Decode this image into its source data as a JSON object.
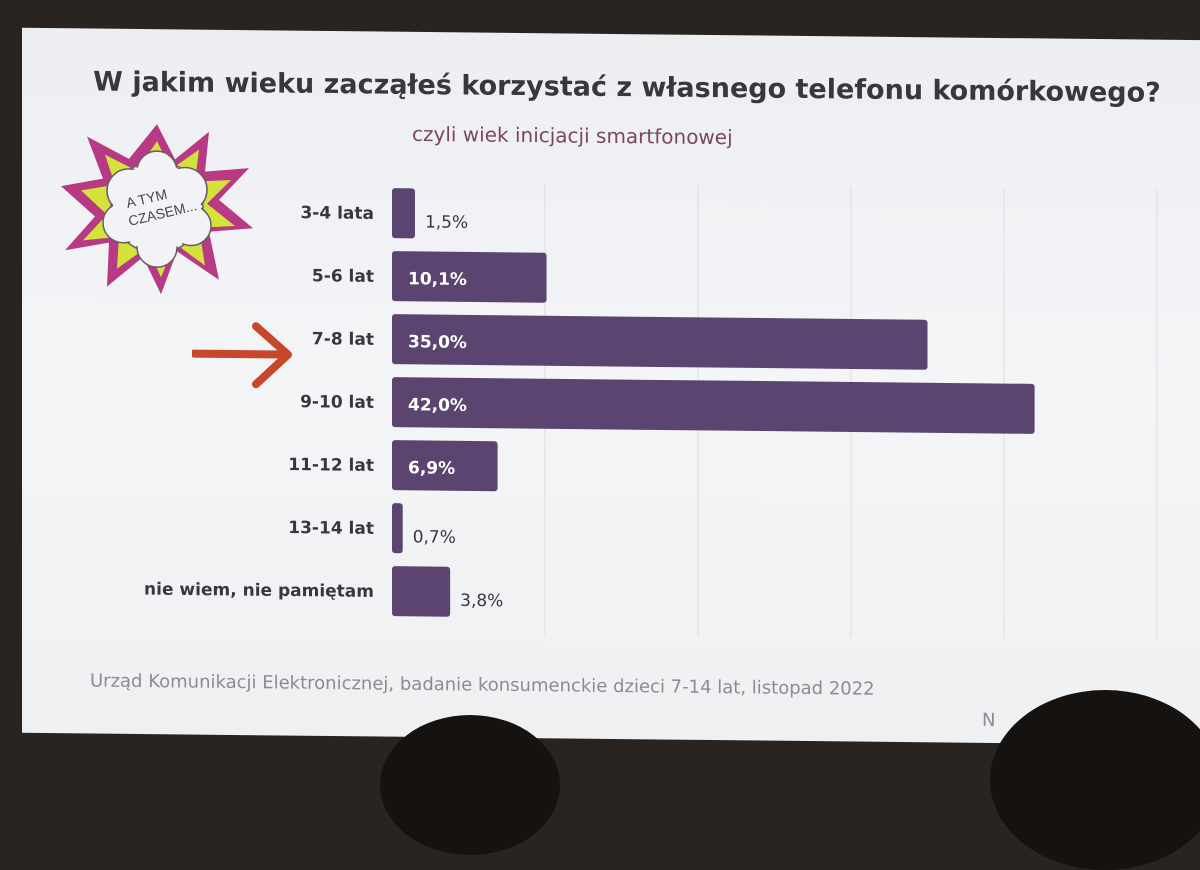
{
  "slide": {
    "title": "W jakim wieku zacząłeś korzystać z własnego telefonu komórkowego?",
    "subtitle": "czyli wiek inicjacji smartfonowej",
    "sticker_text": "A TYM CZASEM...",
    "source": "Urząd Komunikacji Elektronicznej, badanie konsumenckie dzieci 7-14 lat, listopad 2022",
    "source_trailing": "N"
  },
  "colors": {
    "bar": "#5b4470",
    "arrow": "#c8462a",
    "title": "#3a3640",
    "subtitle": "#7a4660"
  },
  "chart_data": {
    "type": "bar",
    "orientation": "horizontal",
    "title": "W jakim wieku zacząłeś korzystać z własnego telefonu komórkowego?",
    "subtitle": "czyli wiek inicjacji smartfonowej",
    "categories": [
      "3-4 lata",
      "5-6 lat",
      "7-8 lat",
      "9-10 lat",
      "11-12 lat",
      "13-14 lat",
      "nie wiem, nie pamiętam"
    ],
    "values": [
      1.5,
      10.1,
      35.0,
      42.0,
      6.9,
      0.7,
      3.8
    ],
    "data_labels": [
      "1,5%",
      "10,1%",
      "35,0%",
      "42,0%",
      "6,9%",
      "0,7%",
      "3,8%"
    ],
    "unit": "%",
    "xlim": [
      0,
      50
    ],
    "grid": true,
    "highlighted_category": "7-8 lat",
    "legend": "none"
  }
}
